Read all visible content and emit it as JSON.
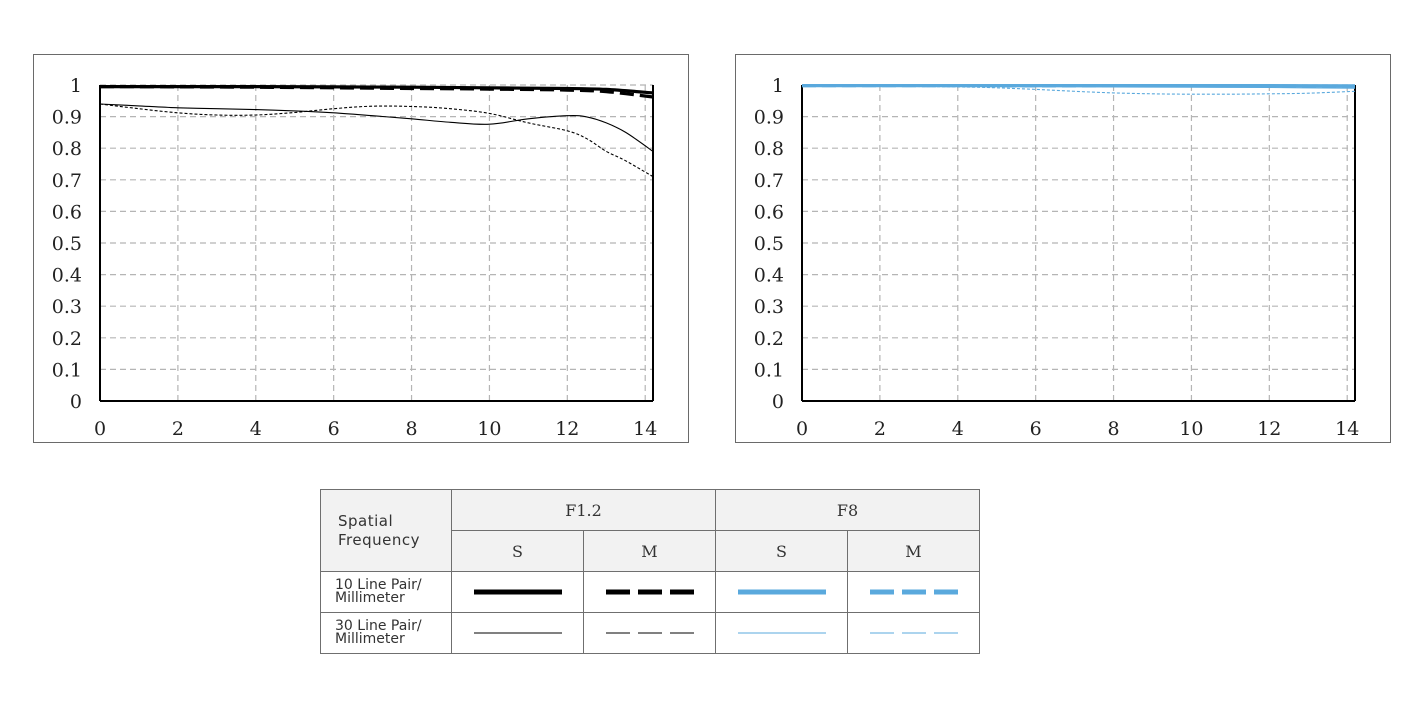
{
  "chart_data": [
    {
      "type": "line",
      "aperture": "F1.2",
      "xlim": [
        0,
        14.2
      ],
      "ylim": [
        0,
        1
      ],
      "x_ticks": [
        "0",
        "2",
        "4",
        "6",
        "8",
        "10",
        "12",
        "14"
      ],
      "y_ticks": [
        "0",
        "0.1",
        "0.2",
        "0.3",
        "0.4",
        "0.5",
        "0.6",
        "0.7",
        "0.8",
        "0.9",
        "1"
      ],
      "grid": true,
      "series": [
        {
          "lp": "10",
          "orient": "S",
          "color": "#000000",
          "style": "solid",
          "x": [
            0,
            2,
            4,
            6,
            8,
            10,
            12,
            13,
            14.2
          ],
          "y": [
            0.995,
            0.995,
            0.995,
            0.994,
            0.993,
            0.991,
            0.989,
            0.986,
            0.975
          ]
        },
        {
          "lp": "10",
          "orient": "M",
          "color": "#000000",
          "style": "dashed",
          "x": [
            0,
            2,
            4,
            6,
            8,
            10,
            12,
            13,
            14.2
          ],
          "y": [
            0.995,
            0.994,
            0.993,
            0.991,
            0.989,
            0.987,
            0.984,
            0.979,
            0.962
          ]
        },
        {
          "lp": "30",
          "orient": "S",
          "color": "#000000",
          "style": "thin-solid",
          "x": [
            0,
            1,
            2,
            3,
            4,
            5,
            6,
            7,
            8,
            9,
            10,
            11,
            12,
            12.5,
            13,
            13.5,
            14.2
          ],
          "y": [
            0.94,
            0.934,
            0.928,
            0.925,
            0.922,
            0.918,
            0.912,
            0.903,
            0.893,
            0.882,
            0.876,
            0.893,
            0.903,
            0.899,
            0.88,
            0.85,
            0.79
          ]
        },
        {
          "lp": "30",
          "orient": "M",
          "color": "#000000",
          "style": "thin-dashed",
          "x": [
            0,
            1,
            2,
            3,
            4,
            5,
            6,
            7,
            8,
            9,
            10,
            11,
            12,
            12.5,
            13,
            13.5,
            14.2
          ],
          "y": [
            0.94,
            0.925,
            0.912,
            0.905,
            0.905,
            0.913,
            0.925,
            0.933,
            0.932,
            0.925,
            0.91,
            0.88,
            0.855,
            0.83,
            0.79,
            0.76,
            0.71
          ]
        }
      ]
    },
    {
      "type": "line",
      "aperture": "F8",
      "xlim": [
        0,
        14.2
      ],
      "ylim": [
        0,
        1
      ],
      "x_ticks": [
        "0",
        "2",
        "4",
        "6",
        "8",
        "10",
        "12",
        "14"
      ],
      "y_ticks": [
        "0",
        "0.1",
        "0.2",
        "0.3",
        "0.4",
        "0.5",
        "0.6",
        "0.7",
        "0.8",
        "0.9",
        "1"
      ],
      "grid": true,
      "series": [
        {
          "lp": "10",
          "orient": "S",
          "color": "#5aa9dd",
          "style": "solid",
          "x": [
            0,
            2,
            4,
            6,
            8,
            10,
            12,
            14.2
          ],
          "y": [
            0.998,
            0.998,
            0.998,
            0.998,
            0.998,
            0.998,
            0.998,
            0.997
          ]
        },
        {
          "lp": "10",
          "orient": "M",
          "color": "#5aa9dd",
          "style": "dashed",
          "x": [
            0,
            2,
            4,
            6,
            8,
            10,
            12,
            14.2
          ],
          "y": [
            0.998,
            0.998,
            0.998,
            0.997,
            0.997,
            0.997,
            0.997,
            0.996
          ]
        },
        {
          "lp": "30",
          "orient": "S",
          "color": "#5aa9dd",
          "style": "thin-solid",
          "x": [
            0,
            2,
            4,
            6,
            8,
            10,
            12,
            14.2
          ],
          "y": [
            0.997,
            0.997,
            0.996,
            0.995,
            0.994,
            0.993,
            0.992,
            0.99
          ]
        },
        {
          "lp": "30",
          "orient": "M",
          "color": "#5aa9dd",
          "style": "thin-dashed",
          "x": [
            0,
            2,
            4,
            5,
            6,
            7,
            8,
            9,
            10,
            11,
            12,
            13,
            14.2
          ],
          "y": [
            0.997,
            0.996,
            0.994,
            0.991,
            0.986,
            0.98,
            0.975,
            0.972,
            0.971,
            0.971,
            0.972,
            0.974,
            0.98
          ]
        }
      ]
    }
  ],
  "legend": {
    "corner_line1": "Spatial",
    "corner_line2": "Frequency",
    "apertures": [
      "F1.2",
      "F8"
    ],
    "sub_labels": [
      "S",
      "M",
      "S",
      "M"
    ],
    "rows": [
      {
        "label_line1": "10 Line Pair/",
        "label_line2": "Millimeter"
      },
      {
        "label_line1": "30 Line Pair/",
        "label_line2": "Millimeter"
      }
    ],
    "colors": {
      "f12": "#000000",
      "f8": "#5aa9dd"
    }
  }
}
